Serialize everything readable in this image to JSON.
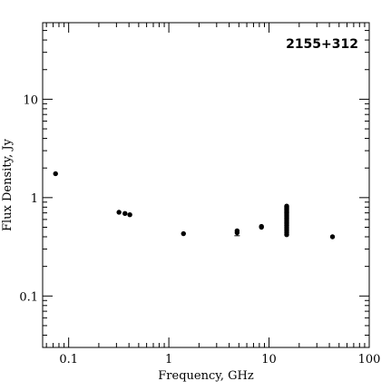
{
  "chart_data": {
    "type": "scatter",
    "title": "2155+312",
    "xlabel": "Frequency, GHz",
    "ylabel": "Flux Density, Jy",
    "xscale": "log",
    "yscale": "log",
    "xlim": [
      0.055,
      100
    ],
    "ylim": [
      0.03,
      60
    ],
    "xticks": [
      {
        "value": 0.1,
        "label": "0.1"
      },
      {
        "value": 1,
        "label": "1"
      },
      {
        "value": 10,
        "label": "10"
      },
      {
        "value": 100,
        "label": "100"
      }
    ],
    "yticks": [
      {
        "value": 0.1,
        "label": "0.1"
      },
      {
        "value": 1,
        "label": "1"
      },
      {
        "value": 10,
        "label": "10"
      }
    ],
    "legend": "none",
    "grid": false,
    "marker_color": "#000000",
    "points": [
      {
        "x": 0.074,
        "y": 1.75
      },
      {
        "x": 0.318,
        "y": 0.71
      },
      {
        "x": 0.365,
        "y": 0.69
      },
      {
        "x": 0.408,
        "y": 0.67
      },
      {
        "x": 1.4,
        "y": 0.43
      },
      {
        "x": 4.8,
        "y": 0.44,
        "yerr": 0.03
      },
      {
        "x": 4.8,
        "y": 0.46
      },
      {
        "x": 8.4,
        "y": 0.5
      },
      {
        "x": 8.4,
        "y": 0.51
      },
      {
        "x": 15,
        "y": 0.42
      },
      {
        "x": 15,
        "y": 0.44
      },
      {
        "x": 15,
        "y": 0.46
      },
      {
        "x": 15,
        "y": 0.48
      },
      {
        "x": 15,
        "y": 0.5
      },
      {
        "x": 15,
        "y": 0.52
      },
      {
        "x": 15,
        "y": 0.54
      },
      {
        "x": 15,
        "y": 0.56
      },
      {
        "x": 15,
        "y": 0.58
      },
      {
        "x": 15,
        "y": 0.6
      },
      {
        "x": 15,
        "y": 0.62
      },
      {
        "x": 15,
        "y": 0.64
      },
      {
        "x": 15,
        "y": 0.66
      },
      {
        "x": 15,
        "y": 0.68
      },
      {
        "x": 15,
        "y": 0.7
      },
      {
        "x": 15,
        "y": 0.72
      },
      {
        "x": 15,
        "y": 0.74
      },
      {
        "x": 15,
        "y": 0.76
      },
      {
        "x": 15,
        "y": 0.78
      },
      {
        "x": 15,
        "y": 0.8
      },
      {
        "x": 15,
        "y": 0.82
      },
      {
        "x": 43,
        "y": 0.4
      }
    ]
  }
}
